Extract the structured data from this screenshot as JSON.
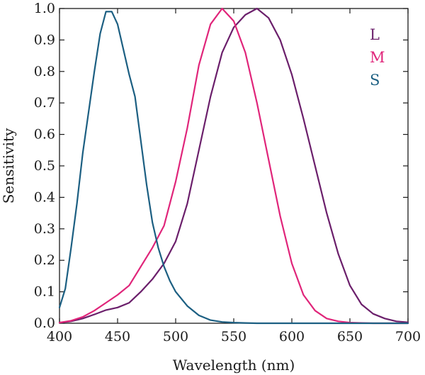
{
  "chart_data": {
    "type": "line",
    "title": "",
    "xlabel": "Wavelength (nm)",
    "ylabel": "Sensitivity",
    "xlim": [
      400,
      700
    ],
    "ylim": [
      0,
      1
    ],
    "xticks": [
      "400",
      "450",
      "500",
      "550",
      "600",
      "650",
      "700"
    ],
    "yticks": [
      "0.0",
      "0.1",
      "0.2",
      "0.3",
      "0.4",
      "0.5",
      "0.6",
      "0.7",
      "0.8",
      "0.9",
      "1.0"
    ],
    "grid": false,
    "legend_position": "top-right",
    "series": [
      {
        "name": "L",
        "color": "#6b1f6b",
        "x": [
          400,
          410,
          420,
          430,
          440,
          450,
          460,
          470,
          480,
          490,
          500,
          510,
          520,
          530,
          540,
          550,
          560,
          570,
          580,
          590,
          600,
          610,
          620,
          630,
          640,
          650,
          660,
          670,
          680,
          690,
          700
        ],
        "y": [
          0.002,
          0.006,
          0.015,
          0.028,
          0.042,
          0.05,
          0.065,
          0.1,
          0.14,
          0.19,
          0.26,
          0.38,
          0.55,
          0.72,
          0.86,
          0.94,
          0.98,
          1.0,
          0.97,
          0.9,
          0.79,
          0.65,
          0.5,
          0.35,
          0.22,
          0.12,
          0.06,
          0.03,
          0.015,
          0.006,
          0.003
        ]
      },
      {
        "name": "M",
        "color": "#e0257a",
        "x": [
          400,
          410,
          420,
          430,
          440,
          450,
          460,
          470,
          480,
          490,
          500,
          510,
          520,
          530,
          540,
          550,
          560,
          570,
          580,
          590,
          600,
          610,
          620,
          630,
          640,
          650,
          660,
          670,
          680,
          690,
          700
        ],
        "y": [
          0.002,
          0.008,
          0.02,
          0.04,
          0.065,
          0.09,
          0.12,
          0.18,
          0.24,
          0.31,
          0.45,
          0.62,
          0.82,
          0.95,
          1.0,
          0.96,
          0.86,
          0.7,
          0.52,
          0.34,
          0.19,
          0.09,
          0.04,
          0.015,
          0.006,
          0.002,
          0.001,
          0.0,
          0.0,
          0.0,
          0.0
        ]
      },
      {
        "name": "S",
        "color": "#1c5f82",
        "x": [
          400,
          405,
          410,
          415,
          420,
          425,
          430,
          435,
          440,
          445,
          450,
          455,
          460,
          465,
          470,
          475,
          480,
          485,
          490,
          495,
          500,
          510,
          520,
          530,
          540,
          550,
          560,
          570,
          600,
          650,
          700
        ],
        "y": [
          0.05,
          0.11,
          0.24,
          0.38,
          0.54,
          0.67,
          0.8,
          0.92,
          0.99,
          0.99,
          0.95,
          0.87,
          0.79,
          0.72,
          0.58,
          0.44,
          0.32,
          0.24,
          0.18,
          0.135,
          0.1,
          0.055,
          0.025,
          0.01,
          0.004,
          0.002,
          0.001,
          0.0,
          0.0,
          0.0,
          0.0
        ]
      }
    ]
  }
}
